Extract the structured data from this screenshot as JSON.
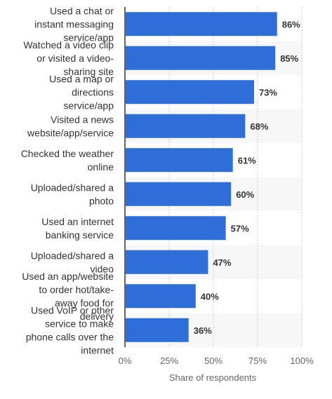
{
  "chart_data": {
    "type": "bar",
    "orientation": "horizontal",
    "categories": [
      [
        "Used a chat or",
        "instant messaging",
        "service/app"
      ],
      [
        "Watched a video clip",
        "or visited a video-",
        "sharing site"
      ],
      [
        "Used a map or",
        "directions",
        "service/app"
      ],
      [
        "Visited a news",
        "website/app/service"
      ],
      [
        "Checked the weather",
        "online"
      ],
      [
        "Uploaded/shared a",
        "photo"
      ],
      [
        "Used an internet",
        "banking service"
      ],
      [
        "Uploaded/shared a",
        "video"
      ],
      [
        "Used an app/website",
        "to order hot/take-",
        "away food for",
        "delivery"
      ],
      [
        "Used VoIP or other",
        "service to make",
        "phone calls over the",
        "internet"
      ]
    ],
    "values": [
      86,
      85,
      73,
      68,
      61,
      60,
      57,
      47,
      40,
      36
    ],
    "value_labels": [
      "86%",
      "85%",
      "73%",
      "68%",
      "61%",
      "60%",
      "57%",
      "47%",
      "40%",
      "36%"
    ],
    "xlabel": "Share of respondents",
    "xlim": [
      0,
      100
    ],
    "xticks": [
      0,
      25,
      50,
      75,
      100
    ],
    "xtick_labels": [
      "0%",
      "25%",
      "50%",
      "75%",
      "100%"
    ],
    "grid": true,
    "bar_color": "#2f6ed9",
    "alt_row_color": "#f7f7f7"
  }
}
